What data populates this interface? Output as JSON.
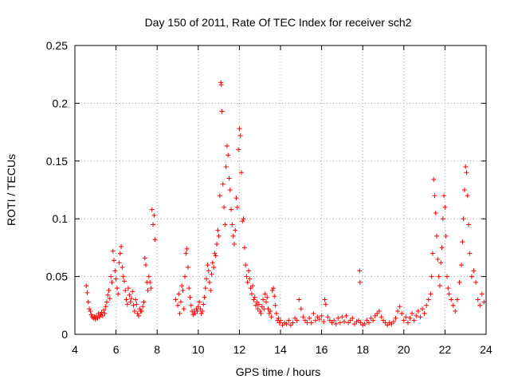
{
  "chart_data": {
    "type": "scatter",
    "title": "Day 150 of 2011, Rate Of TEC Index for receiver sch2",
    "xlabel": "GPS time / hours",
    "ylabel": "ROTI / TECUs",
    "xlim": [
      4,
      24
    ],
    "ylim": [
      0,
      0.25
    ],
    "x_ticks": [
      "4",
      "6",
      "8",
      "10",
      "12",
      "14",
      "16",
      "18",
      "20",
      "22",
      "24"
    ],
    "y_ticks": [
      "0",
      "0.05",
      "0.1",
      "0.15",
      "0.2",
      "0.25"
    ],
    "grid": true,
    "marker": "plus",
    "color": "#ff0000",
    "series": [
      {
        "points": [
          [
            4.55,
            0.042
          ],
          [
            4.6,
            0.036
          ],
          [
            4.65,
            0.028
          ],
          [
            4.7,
            0.022
          ],
          [
            4.75,
            0.02
          ],
          [
            4.8,
            0.017
          ],
          [
            4.85,
            0.015
          ],
          [
            4.9,
            0.014
          ],
          [
            4.95,
            0.015
          ],
          [
            5.0,
            0.013
          ],
          [
            5.05,
            0.016
          ],
          [
            5.1,
            0.014
          ],
          [
            5.15,
            0.018
          ],
          [
            5.2,
            0.015
          ],
          [
            5.25,
            0.017
          ],
          [
            5.3,
            0.019
          ],
          [
            5.35,
            0.016
          ],
          [
            5.4,
            0.021
          ],
          [
            5.45,
            0.018
          ],
          [
            5.5,
            0.024
          ],
          [
            5.55,
            0.028
          ],
          [
            5.6,
            0.034
          ],
          [
            5.65,
            0.038
          ],
          [
            5.7,
            0.031
          ],
          [
            5.75,
            0.05
          ],
          [
            5.8,
            0.045
          ],
          [
            5.85,
            0.072
          ],
          [
            5.9,
            0.064
          ],
          [
            5.95,
            0.055
          ],
          [
            6.0,
            0.048
          ],
          [
            6.05,
            0.04
          ],
          [
            6.1,
            0.035
          ],
          [
            6.15,
            0.062
          ],
          [
            6.2,
            0.07
          ],
          [
            6.25,
            0.076
          ],
          [
            6.3,
            0.058
          ],
          [
            6.35,
            0.05
          ],
          [
            6.4,
            0.046
          ],
          [
            6.45,
            0.038
          ],
          [
            6.5,
            0.03
          ],
          [
            6.55,
            0.026
          ],
          [
            6.6,
            0.04
          ],
          [
            6.65,
            0.034
          ],
          [
            6.7,
            0.028
          ],
          [
            6.75,
            0.031
          ],
          [
            6.8,
            0.037
          ],
          [
            6.85,
            0.025
          ],
          [
            6.9,
            0.02
          ],
          [
            6.95,
            0.03
          ],
          [
            7.0,
            0.026
          ],
          [
            7.05,
            0.018
          ],
          [
            7.1,
            0.016
          ],
          [
            7.15,
            0.022
          ],
          [
            7.2,
            0.02
          ],
          [
            7.25,
            0.02
          ],
          [
            7.3,
            0.024
          ],
          [
            7.35,
            0.028
          ],
          [
            7.4,
            0.066
          ],
          [
            7.45,
            0.06
          ],
          [
            7.5,
            0.045
          ],
          [
            7.55,
            0.038
          ],
          [
            7.6,
            0.05
          ],
          [
            7.65,
            0.045
          ],
          [
            7.7,
            0.04
          ],
          [
            7.75,
            0.108
          ],
          [
            7.8,
            0.095
          ],
          [
            7.85,
            0.103
          ],
          [
            7.9,
            0.082
          ],
          [
            8.9,
            0.03
          ],
          [
            9.0,
            0.025
          ],
          [
            9.05,
            0.035
          ],
          [
            9.1,
            0.018
          ],
          [
            9.15,
            0.028
          ],
          [
            9.2,
            0.042
          ],
          [
            9.25,
            0.038
          ],
          [
            9.3,
            0.022
          ],
          [
            9.35,
            0.05
          ],
          [
            9.4,
            0.07
          ],
          [
            9.45,
            0.074
          ],
          [
            9.5,
            0.058
          ],
          [
            9.55,
            0.04
          ],
          [
            9.6,
            0.032
          ],
          [
            9.65,
            0.025
          ],
          [
            9.7,
            0.02
          ],
          [
            9.75,
            0.017
          ],
          [
            9.8,
            0.02
          ],
          [
            9.85,
            0.018
          ],
          [
            9.9,
            0.022
          ],
          [
            9.95,
            0.02
          ],
          [
            10.0,
            0.024
          ],
          [
            10.05,
            0.028
          ],
          [
            10.1,
            0.022
          ],
          [
            10.15,
            0.018
          ],
          [
            10.2,
            0.02
          ],
          [
            10.25,
            0.026
          ],
          [
            10.3,
            0.032
          ],
          [
            10.35,
            0.04
          ],
          [
            10.4,
            0.048
          ],
          [
            10.45,
            0.06
          ],
          [
            10.5,
            0.055
          ],
          [
            10.55,
            0.045
          ],
          [
            10.6,
            0.038
          ],
          [
            10.65,
            0.052
          ],
          [
            10.7,
            0.062
          ],
          [
            10.75,
            0.058
          ],
          [
            10.8,
            0.07
          ],
          [
            10.85,
            0.068
          ],
          [
            10.9,
            0.078
          ],
          [
            10.95,
            0.09
          ],
          [
            11.0,
            0.085
          ],
          [
            11.05,
            0.12
          ],
          [
            11.1,
            0.218
          ],
          [
            11.12,
            0.216
          ],
          [
            11.15,
            0.193
          ],
          [
            11.2,
            0.13
          ],
          [
            11.25,
            0.11
          ],
          [
            11.3,
            0.095
          ],
          [
            11.35,
            0.145
          ],
          [
            11.4,
            0.163
          ],
          [
            11.45,
            0.155
          ],
          [
            11.5,
            0.135
          ],
          [
            11.55,
            0.125
          ],
          [
            11.6,
            0.108
          ],
          [
            11.65,
            0.095
          ],
          [
            11.7,
            0.085
          ],
          [
            11.75,
            0.078
          ],
          [
            11.8,
            0.09
          ],
          [
            11.85,
            0.118
          ],
          [
            11.9,
            0.11
          ],
          [
            11.95,
            0.16
          ],
          [
            12.0,
            0.178
          ],
          [
            12.05,
            0.172
          ],
          [
            12.1,
            0.14
          ],
          [
            12.15,
            0.098
          ],
          [
            12.2,
            0.1
          ],
          [
            12.25,
            0.075
          ],
          [
            12.3,
            0.06
          ],
          [
            12.35,
            0.05
          ],
          [
            12.4,
            0.045
          ],
          [
            12.45,
            0.055
          ],
          [
            12.5,
            0.048
          ],
          [
            12.55,
            0.04
          ],
          [
            12.6,
            0.035
          ],
          [
            12.65,
            0.042
          ],
          [
            12.7,
            0.03
          ],
          [
            12.75,
            0.032
          ],
          [
            12.8,
            0.025
          ],
          [
            12.85,
            0.028
          ],
          [
            12.9,
            0.022
          ],
          [
            12.95,
            0.026
          ],
          [
            13.0,
            0.02
          ],
          [
            13.05,
            0.018
          ],
          [
            13.1,
            0.024
          ],
          [
            13.15,
            0.03
          ],
          [
            13.2,
            0.022
          ],
          [
            13.25,
            0.035
          ],
          [
            13.3,
            0.028
          ],
          [
            13.35,
            0.032
          ],
          [
            13.4,
            0.022
          ],
          [
            13.45,
            0.018
          ],
          [
            13.5,
            0.02
          ],
          [
            13.55,
            0.015
          ],
          [
            13.6,
            0.038
          ],
          [
            13.65,
            0.04
          ],
          [
            13.7,
            0.033
          ],
          [
            13.75,
            0.025
          ],
          [
            13.8,
            0.018
          ],
          [
            13.85,
            0.012
          ],
          [
            13.9,
            0.014
          ],
          [
            13.95,
            0.01
          ],
          [
            14.0,
            0.012
          ],
          [
            14.1,
            0.008
          ],
          [
            14.2,
            0.01
          ],
          [
            14.3,
            0.009
          ],
          [
            14.4,
            0.012
          ],
          [
            14.5,
            0.008
          ],
          [
            14.6,
            0.01
          ],
          [
            14.7,
            0.014
          ],
          [
            14.8,
            0.012
          ],
          [
            14.9,
            0.03
          ],
          [
            15.0,
            0.022
          ],
          [
            15.1,
            0.015
          ],
          [
            15.2,
            0.012
          ],
          [
            15.3,
            0.01
          ],
          [
            15.4,
            0.014
          ],
          [
            15.5,
            0.01
          ],
          [
            15.6,
            0.018
          ],
          [
            15.7,
            0.012
          ],
          [
            15.8,
            0.015
          ],
          [
            15.9,
            0.013
          ],
          [
            16.0,
            0.016
          ],
          [
            16.1,
            0.011
          ],
          [
            16.15,
            0.03
          ],
          [
            16.2,
            0.026
          ],
          [
            16.3,
            0.015
          ],
          [
            16.4,
            0.012
          ],
          [
            16.5,
            0.01
          ],
          [
            16.6,
            0.012
          ],
          [
            16.7,
            0.009
          ],
          [
            16.8,
            0.014
          ],
          [
            16.9,
            0.01
          ],
          [
            17.0,
            0.015
          ],
          [
            17.1,
            0.011
          ],
          [
            17.2,
            0.016
          ],
          [
            17.3,
            0.01
          ],
          [
            17.4,
            0.012
          ],
          [
            17.5,
            0.014
          ],
          [
            17.6,
            0.009
          ],
          [
            17.7,
            0.011
          ],
          [
            17.8,
            0.012
          ],
          [
            17.85,
            0.055
          ],
          [
            17.87,
            0.045
          ],
          [
            17.9,
            0.01
          ],
          [
            18.0,
            0.008
          ],
          [
            18.1,
            0.009
          ],
          [
            18.2,
            0.012
          ],
          [
            18.3,
            0.01
          ],
          [
            18.4,
            0.014
          ],
          [
            18.5,
            0.012
          ],
          [
            18.6,
            0.016
          ],
          [
            18.7,
            0.018
          ],
          [
            18.8,
            0.02
          ],
          [
            18.9,
            0.015
          ],
          [
            19.0,
            0.012
          ],
          [
            19.1,
            0.01
          ],
          [
            19.2,
            0.008
          ],
          [
            19.3,
            0.01
          ],
          [
            19.4,
            0.009
          ],
          [
            19.5,
            0.011
          ],
          [
            19.6,
            0.014
          ],
          [
            19.7,
            0.02
          ],
          [
            19.8,
            0.024
          ],
          [
            19.9,
            0.018
          ],
          [
            20.0,
            0.012
          ],
          [
            20.1,
            0.015
          ],
          [
            20.2,
            0.01
          ],
          [
            20.3,
            0.014
          ],
          [
            20.4,
            0.018
          ],
          [
            20.5,
            0.012
          ],
          [
            20.6,
            0.016
          ],
          [
            20.7,
            0.02
          ],
          [
            20.8,
            0.015
          ],
          [
            20.9,
            0.022
          ],
          [
            21.0,
            0.018
          ],
          [
            21.1,
            0.025
          ],
          [
            21.2,
            0.03
          ],
          [
            21.3,
            0.035
          ],
          [
            21.35,
            0.05
          ],
          [
            21.4,
            0.07
          ],
          [
            21.45,
            0.134
          ],
          [
            21.5,
            0.12
          ],
          [
            21.55,
            0.105
          ],
          [
            21.6,
            0.085
          ],
          [
            21.65,
            0.065
          ],
          [
            21.7,
            0.05
          ],
          [
            21.75,
            0.042
          ],
          [
            21.8,
            0.062
          ],
          [
            21.85,
            0.075
          ],
          [
            21.9,
            0.1
          ],
          [
            21.95,
            0.12
          ],
          [
            22.0,
            0.11
          ],
          [
            22.05,
            0.085
          ],
          [
            22.1,
            0.05
          ],
          [
            22.15,
            0.04
          ],
          [
            22.2,
            0.035
          ],
          [
            22.3,
            0.03
          ],
          [
            22.4,
            0.025
          ],
          [
            22.5,
            0.02
          ],
          [
            22.6,
            0.03
          ],
          [
            22.7,
            0.045
          ],
          [
            22.8,
            0.06
          ],
          [
            22.85,
            0.08
          ],
          [
            22.9,
            0.1
          ],
          [
            22.95,
            0.125
          ],
          [
            23.0,
            0.145
          ],
          [
            23.05,
            0.14
          ],
          [
            23.1,
            0.12
          ],
          [
            23.15,
            0.095
          ],
          [
            23.2,
            0.07
          ],
          [
            23.3,
            0.05
          ],
          [
            23.4,
            0.055
          ],
          [
            23.5,
            0.045
          ],
          [
            23.6,
            0.03
          ],
          [
            23.7,
            0.025
          ],
          [
            23.8,
            0.035
          ],
          [
            23.9,
            0.028
          ]
        ]
      }
    ]
  }
}
